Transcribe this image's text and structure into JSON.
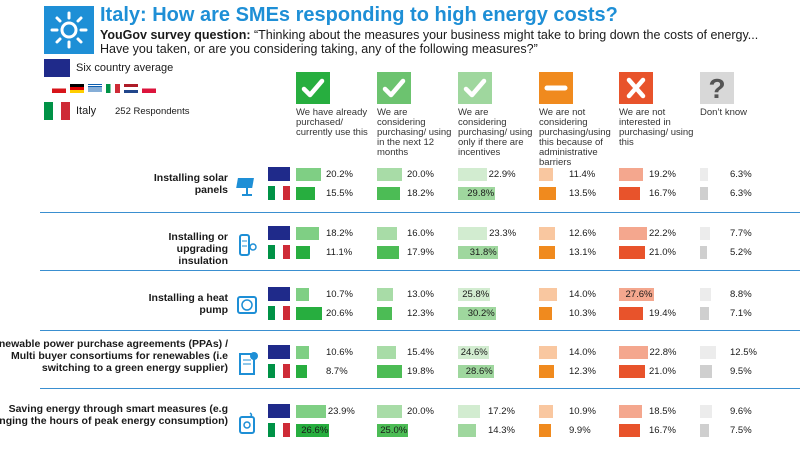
{
  "header": {
    "title": "Italy: How are SMEs responding to high energy costs?",
    "question_label": "YouGov survey question:",
    "question_text": "“Thinking about the measures your business might take to bring down the costs of energy... Have you taken, or are you considering taking, any of the following measures?”"
  },
  "legend": {
    "avg_label": "Six country average",
    "italy_label": "Italy",
    "respondents": "252 Respondents"
  },
  "colors": {
    "dark_green": "#27ae3f",
    "mid_green": "#7fcf84",
    "light_green": "#c9e9c6",
    "orange_light": "#f9c7a0",
    "orange": "#f08a1e",
    "red_light": "#f4a78e",
    "red": "#e8532b",
    "grey_light": "#ececec",
    "grey": "#cfcfcf",
    "accent": "#1e8fd6"
  },
  "chart_data": {
    "type": "bar",
    "columns": [
      {
        "label": "We have already purchased/ currently use this",
        "icon": "check-icon",
        "color_avg": "#7fcf84",
        "color_it": "#27ae3f"
      },
      {
        "label": "We are considering purchasing/ using in the next 12 months",
        "icon": "check-icon",
        "color_avg": "#a8dca7",
        "color_it": "#4cbc55"
      },
      {
        "label": "We are considering purchasing/ using only if there are incentives",
        "icon": "check-icon",
        "color_avg": "#d2ecd0",
        "color_it": "#9fd79e"
      },
      {
        "label": "We are not considering purchasing/using this because of administrative barriers",
        "icon": "minus-icon",
        "color_avg": "#f9c7a0",
        "color_it": "#f08a1e"
      },
      {
        "label": "We are not interested in purchasing/ using this",
        "icon": "cross-icon",
        "color_avg": "#f4a78e",
        "color_it": "#e8532b"
      },
      {
        "label": "Don’t know",
        "icon": "question-icon",
        "color_avg": "#ececec",
        "color_it": "#cfcfcf"
      }
    ],
    "rows": [
      {
        "label": "Installing solar panels",
        "icon": "solar-panel-icon",
        "avg": [
          20.2,
          20.0,
          22.9,
          11.4,
          19.2,
          6.3
        ],
        "italy": [
          15.5,
          18.2,
          29.8,
          13.5,
          16.7,
          6.3
        ]
      },
      {
        "label": "Installing or upgrading insulation",
        "icon": "insulation-icon",
        "avg": [
          18.2,
          16.0,
          23.3,
          12.6,
          22.2,
          7.7
        ],
        "italy": [
          11.1,
          17.9,
          31.8,
          13.1,
          21.0,
          5.2
        ]
      },
      {
        "label": "Installing a heat pump",
        "icon": "heat-pump-icon",
        "avg": [
          10.7,
          13.0,
          25.8,
          14.0,
          27.6,
          8.8
        ],
        "italy": [
          20.6,
          12.3,
          30.2,
          10.3,
          19.4,
          7.1
        ]
      },
      {
        "label": "Renewable power purchase agreements (PPAs) / Multi buyer consortiums for renewables (i.e switching to a green energy supplier)",
        "icon": "contract-icon",
        "avg": [
          10.6,
          15.4,
          24.6,
          14.0,
          22.8,
          12.5
        ],
        "italy": [
          8.7,
          19.8,
          28.6,
          12.3,
          21.0,
          9.5
        ]
      },
      {
        "label": "Saving energy through smart measures (e.g changing the hours of peak energy consumption)",
        "icon": "smart-meter-icon",
        "avg": [
          23.9,
          20.0,
          17.2,
          10.9,
          18.5,
          9.6
        ],
        "italy": [
          26.6,
          25.0,
          14.3,
          9.9,
          16.7,
          7.5
        ]
      }
    ]
  }
}
